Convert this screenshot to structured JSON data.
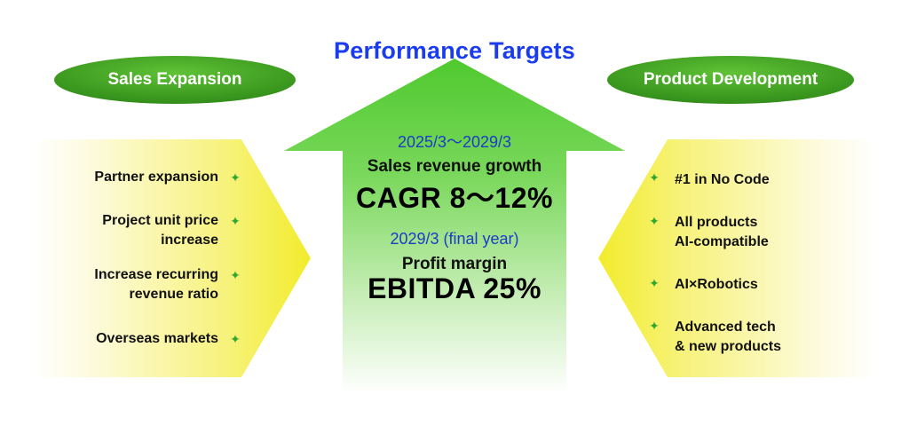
{
  "title": "Performance Targets",
  "left_panel": {
    "heading": "Sales Expansion",
    "items": [
      {
        "lines": [
          "Partner expansion"
        ]
      },
      {
        "lines": [
          "Project unit price",
          "increase"
        ]
      },
      {
        "lines": [
          "Increase recurring",
          "revenue ratio"
        ]
      },
      {
        "lines": [
          "Overseas markets"
        ]
      }
    ]
  },
  "right_panel": {
    "heading": "Product Development",
    "items": [
      {
        "lines": [
          "#1 in No Code"
        ]
      },
      {
        "lines": [
          "All products",
          "AI-compatible"
        ]
      },
      {
        "lines": [
          "AI×Robotics"
        ]
      },
      {
        "lines": [
          "Advanced tech",
          "& new products"
        ]
      }
    ]
  },
  "center": {
    "target1": {
      "period": "2025/3～2029/3",
      "label": "Sales revenue growth",
      "value": "CAGR 8～12%"
    },
    "target2": {
      "period": "2029/3 (final year)",
      "label": "Profit margin",
      "value": "EBITDA 25%"
    }
  },
  "colors": {
    "title": "#1a3cf0",
    "pill_green": "#3d9e1e",
    "arrow_green": "#5bcf3c",
    "chevron_yellow": "#f3ee2a",
    "star_green": "#32a830"
  },
  "icons": {
    "bullet": "four-point-star-icon"
  }
}
